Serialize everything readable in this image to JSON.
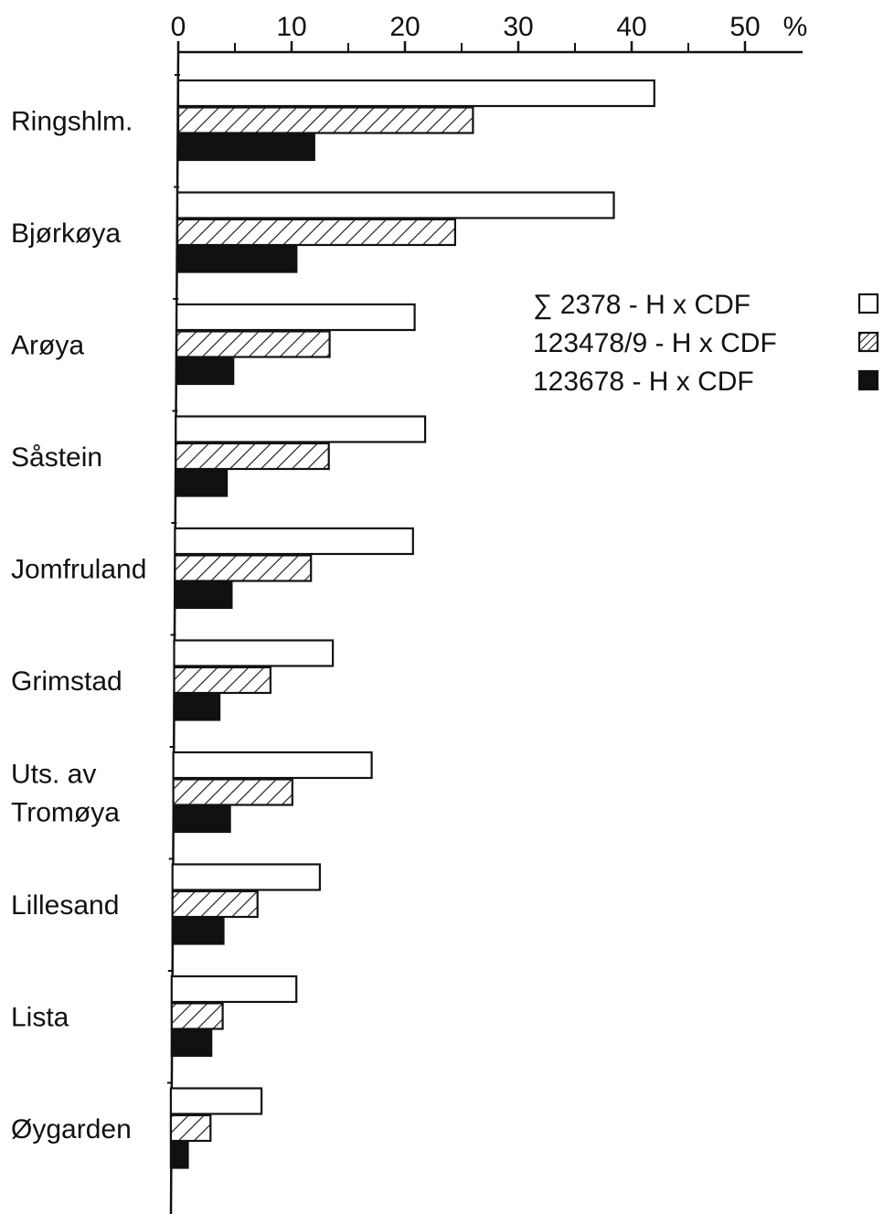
{
  "chart_data": {
    "type": "bar",
    "orientation": "horizontal",
    "title": "",
    "xlabel": "",
    "ylabel": "",
    "x_unit": "%",
    "xlim": [
      0,
      55
    ],
    "x_ticks": [
      {
        "value": 0,
        "label": "0"
      },
      {
        "value": 10,
        "label": "10"
      },
      {
        "value": 20,
        "label": "20"
      },
      {
        "value": 30,
        "label": "30"
      },
      {
        "value": 40,
        "label": "40"
      },
      {
        "value": 50,
        "label": "50"
      }
    ],
    "minor_ticks": [
      5,
      15,
      25,
      35,
      45
    ],
    "grid": false,
    "legend_position": "right",
    "categories": [
      [
        "Ringshlm."
      ],
      [
        "Bjørkøya"
      ],
      [
        "Arøya"
      ],
      [
        "Såstein"
      ],
      [
        "Jomfruland"
      ],
      [
        "Grimstad"
      ],
      [
        "Uts. av",
        "Tromøya"
      ],
      [
        "Lillesand"
      ],
      [
        "Lista"
      ],
      [
        "Øygarden"
      ]
    ],
    "series": [
      {
        "name": "∑ 2378 - H x CDF",
        "fill": "open",
        "values": [
          42.0,
          38.5,
          21.0,
          22.0,
          21.0,
          14.0,
          17.5,
          13.0,
          11.0,
          8.0
        ]
      },
      {
        "name": "123478/9 - H x CDF",
        "fill": "hatched",
        "values": [
          26.0,
          24.5,
          13.5,
          13.5,
          12.0,
          8.5,
          10.5,
          7.5,
          4.5,
          3.5
        ]
      },
      {
        "name": "123678 - H x CDF",
        "fill": "solid",
        "values": [
          12.0,
          10.5,
          5.0,
          4.5,
          5.0,
          4.0,
          5.0,
          4.5,
          3.5,
          1.5
        ]
      }
    ]
  },
  "colors": {
    "ink": "#111111",
    "paper": "#ffffff"
  }
}
